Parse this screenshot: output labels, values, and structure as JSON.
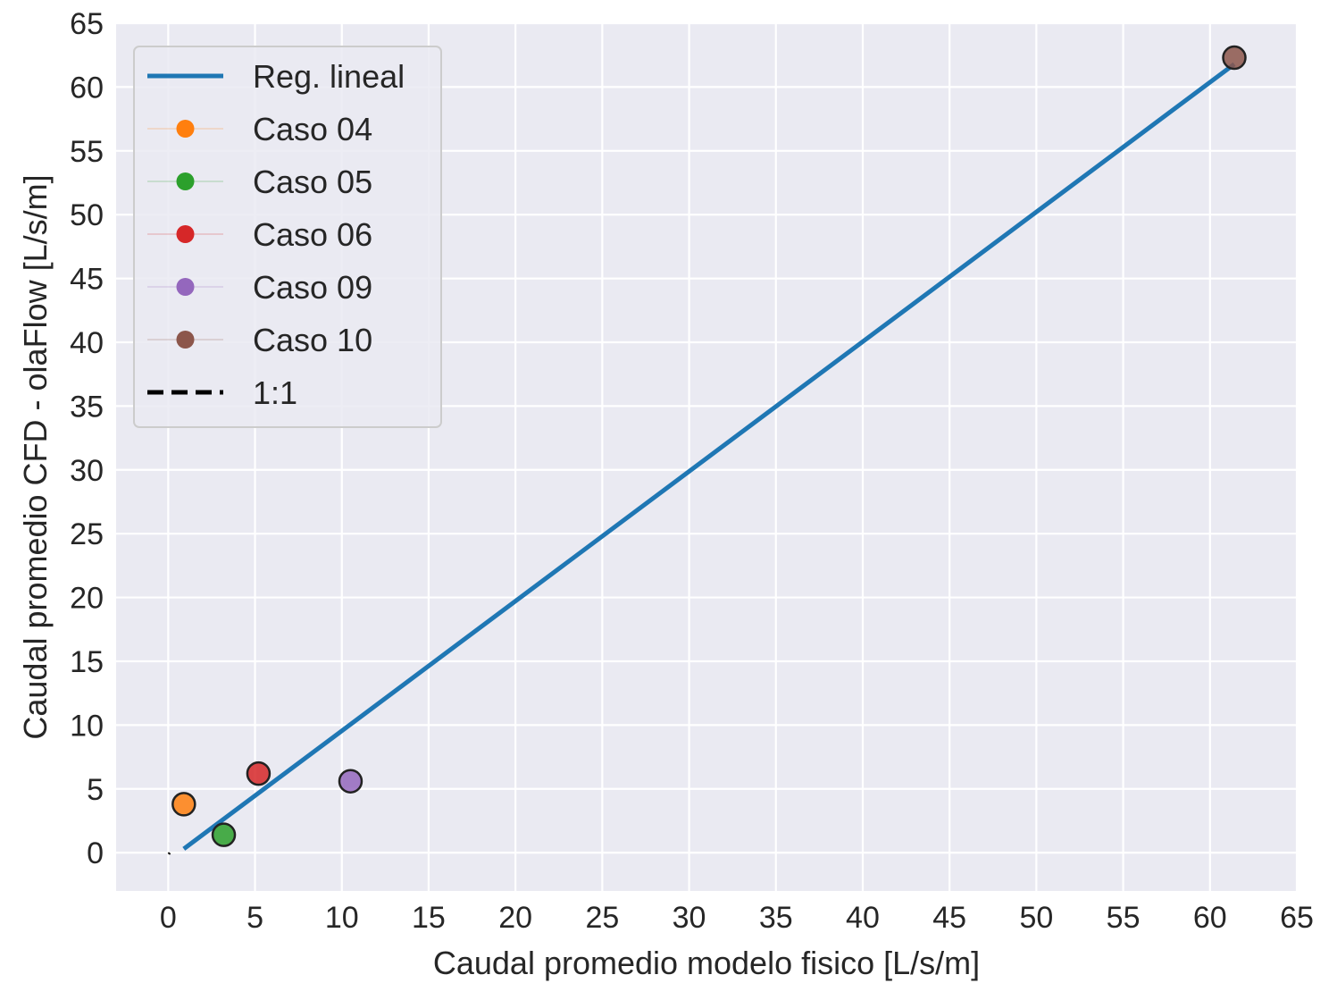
{
  "chart_data": {
    "type": "scatter",
    "title": "",
    "xlabel": "Caudal promedio modelo fisico [L/s/m]",
    "ylabel": "Caudal promedio CFD - olaFlow [L/s/m]",
    "xlim": [
      -3,
      65
    ],
    "ylim": [
      -3,
      65
    ],
    "xticks": [
      0,
      5,
      10,
      15,
      20,
      25,
      30,
      35,
      40,
      45,
      50,
      55,
      60,
      65
    ],
    "yticks": [
      0,
      5,
      10,
      15,
      20,
      25,
      30,
      35,
      40,
      45,
      50,
      55,
      60,
      65
    ],
    "grid": true,
    "legend_position": "top-left",
    "background_color": "#eaeaf2",
    "regression": {
      "name": "Reg. lineal",
      "color": "#1f77b4",
      "x": [
        0.9,
        61.4
      ],
      "y": [
        0.3,
        61.8
      ]
    },
    "series": [
      {
        "name": "Caso 04",
        "color": "#ff7f0e",
        "x": [
          0.9
        ],
        "y": [
          3.8
        ]
      },
      {
        "name": "Caso 05",
        "color": "#2ca02c",
        "x": [
          3.2
        ],
        "y": [
          1.4
        ]
      },
      {
        "name": "Caso 06",
        "color": "#d62728",
        "x": [
          5.2
        ],
        "y": [
          6.2
        ]
      },
      {
        "name": "Caso 09",
        "color": "#9467bd",
        "x": [
          10.5
        ],
        "y": [
          5.6
        ]
      },
      {
        "name": "Caso 10",
        "color": "#8c564b",
        "x": [
          61.4
        ],
        "y": [
          62.3
        ]
      }
    ],
    "identity_line": {
      "name": "1:1",
      "color": "#000000",
      "x": [
        0,
        0.12
      ],
      "y": [
        0,
        -0.12
      ]
    }
  }
}
